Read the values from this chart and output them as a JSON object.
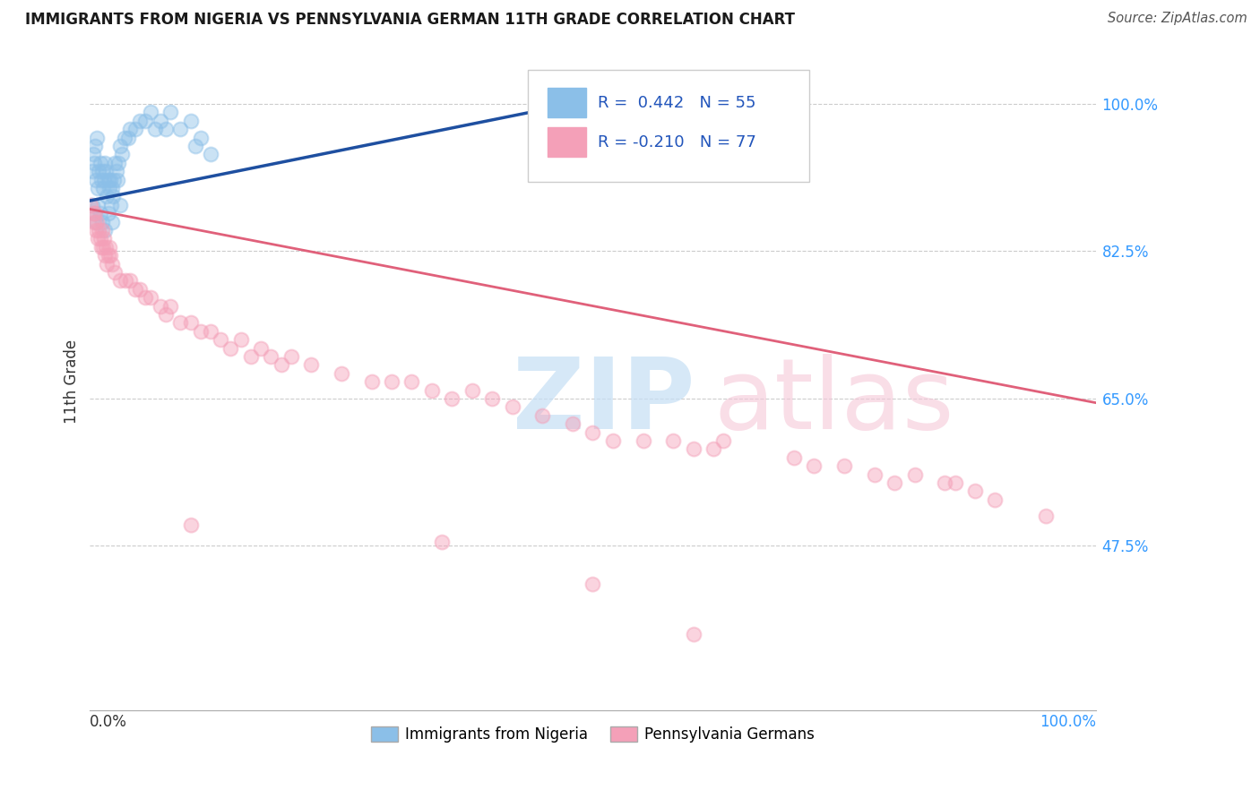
{
  "title": "IMMIGRANTS FROM NIGERIA VS PENNSYLVANIA GERMAN 11TH GRADE CORRELATION CHART",
  "source": "Source: ZipAtlas.com",
  "ylabel": "11th Grade",
  "legend_label1": "Immigrants from Nigeria",
  "legend_label2": "Pennsylvania Germans",
  "R1": 0.442,
  "N1": 55,
  "R2": -0.21,
  "N2": 77,
  "color_blue": "#8bbfe8",
  "color_pink": "#f4a0b8",
  "line_blue": "#1e4fa0",
  "line_pink": "#e0607a",
  "background": "#ffffff",
  "ytick_vals": [
    0.475,
    0.65,
    0.825,
    1.0
  ],
  "ytick_labels": [
    "47.5%",
    "65.0%",
    "82.5%",
    "100.0%"
  ],
  "xlim": [
    0.0,
    1.0
  ],
  "ylim": [
    0.28,
    1.06
  ],
  "blue_line_x0": 0.0,
  "blue_line_y0": 0.885,
  "blue_line_x1": 0.5,
  "blue_line_y1": 1.005,
  "pink_line_x0": 0.0,
  "pink_line_y0": 0.875,
  "pink_line_x1": 1.0,
  "pink_line_y1": 0.645,
  "blue_pts_x": [
    0.002,
    0.003,
    0.004,
    0.005,
    0.006,
    0.007,
    0.008,
    0.009,
    0.01,
    0.011,
    0.012,
    0.013,
    0.014,
    0.015,
    0.016,
    0.017,
    0.018,
    0.019,
    0.02,
    0.021,
    0.022,
    0.023,
    0.024,
    0.025,
    0.026,
    0.027,
    0.028,
    0.03,
    0.032,
    0.034,
    0.038,
    0.04,
    0.045,
    0.05,
    0.055,
    0.06,
    0.065,
    0.07,
    0.075,
    0.08,
    0.09,
    0.1,
    0.105,
    0.11,
    0.12,
    0.002,
    0.004,
    0.006,
    0.008,
    0.01,
    0.012,
    0.015,
    0.018,
    0.022,
    0.03
  ],
  "blue_pts_y": [
    0.92,
    0.94,
    0.93,
    0.95,
    0.91,
    0.96,
    0.9,
    0.92,
    0.93,
    0.91,
    0.92,
    0.9,
    0.91,
    0.93,
    0.92,
    0.89,
    0.91,
    0.9,
    0.91,
    0.88,
    0.9,
    0.89,
    0.91,
    0.93,
    0.92,
    0.91,
    0.93,
    0.95,
    0.94,
    0.96,
    0.96,
    0.97,
    0.97,
    0.98,
    0.98,
    0.99,
    0.97,
    0.98,
    0.97,
    0.99,
    0.97,
    0.98,
    0.95,
    0.96,
    0.94,
    0.88,
    0.87,
    0.86,
    0.88,
    0.87,
    0.86,
    0.85,
    0.87,
    0.86,
    0.88
  ],
  "pink_pts_x": [
    0.001,
    0.003,
    0.004,
    0.005,
    0.006,
    0.007,
    0.008,
    0.009,
    0.01,
    0.011,
    0.012,
    0.013,
    0.014,
    0.015,
    0.016,
    0.017,
    0.018,
    0.019,
    0.02,
    0.022,
    0.025,
    0.03,
    0.035,
    0.04,
    0.045,
    0.05,
    0.055,
    0.06,
    0.07,
    0.075,
    0.08,
    0.09,
    0.1,
    0.11,
    0.12,
    0.13,
    0.14,
    0.15,
    0.16,
    0.17,
    0.18,
    0.19,
    0.2,
    0.22,
    0.25,
    0.28,
    0.3,
    0.32,
    0.34,
    0.36,
    0.38,
    0.4,
    0.42,
    0.45,
    0.48,
    0.5,
    0.52,
    0.55,
    0.58,
    0.6,
    0.62,
    0.63,
    0.7,
    0.72,
    0.75,
    0.78,
    0.8,
    0.82,
    0.85,
    0.86,
    0.88,
    0.9,
    0.95,
    0.1,
    0.35,
    0.5,
    0.6
  ],
  "pink_pts_y": [
    0.88,
    0.87,
    0.86,
    0.87,
    0.85,
    0.86,
    0.84,
    0.85,
    0.84,
    0.83,
    0.85,
    0.83,
    0.84,
    0.82,
    0.83,
    0.81,
    0.82,
    0.83,
    0.82,
    0.81,
    0.8,
    0.79,
    0.79,
    0.79,
    0.78,
    0.78,
    0.77,
    0.77,
    0.76,
    0.75,
    0.76,
    0.74,
    0.74,
    0.73,
    0.73,
    0.72,
    0.71,
    0.72,
    0.7,
    0.71,
    0.7,
    0.69,
    0.7,
    0.69,
    0.68,
    0.67,
    0.67,
    0.67,
    0.66,
    0.65,
    0.66,
    0.65,
    0.64,
    0.63,
    0.62,
    0.61,
    0.6,
    0.6,
    0.6,
    0.59,
    0.59,
    0.6,
    0.58,
    0.57,
    0.57,
    0.56,
    0.55,
    0.56,
    0.55,
    0.55,
    0.54,
    0.53,
    0.51,
    0.5,
    0.48,
    0.43,
    0.37
  ]
}
